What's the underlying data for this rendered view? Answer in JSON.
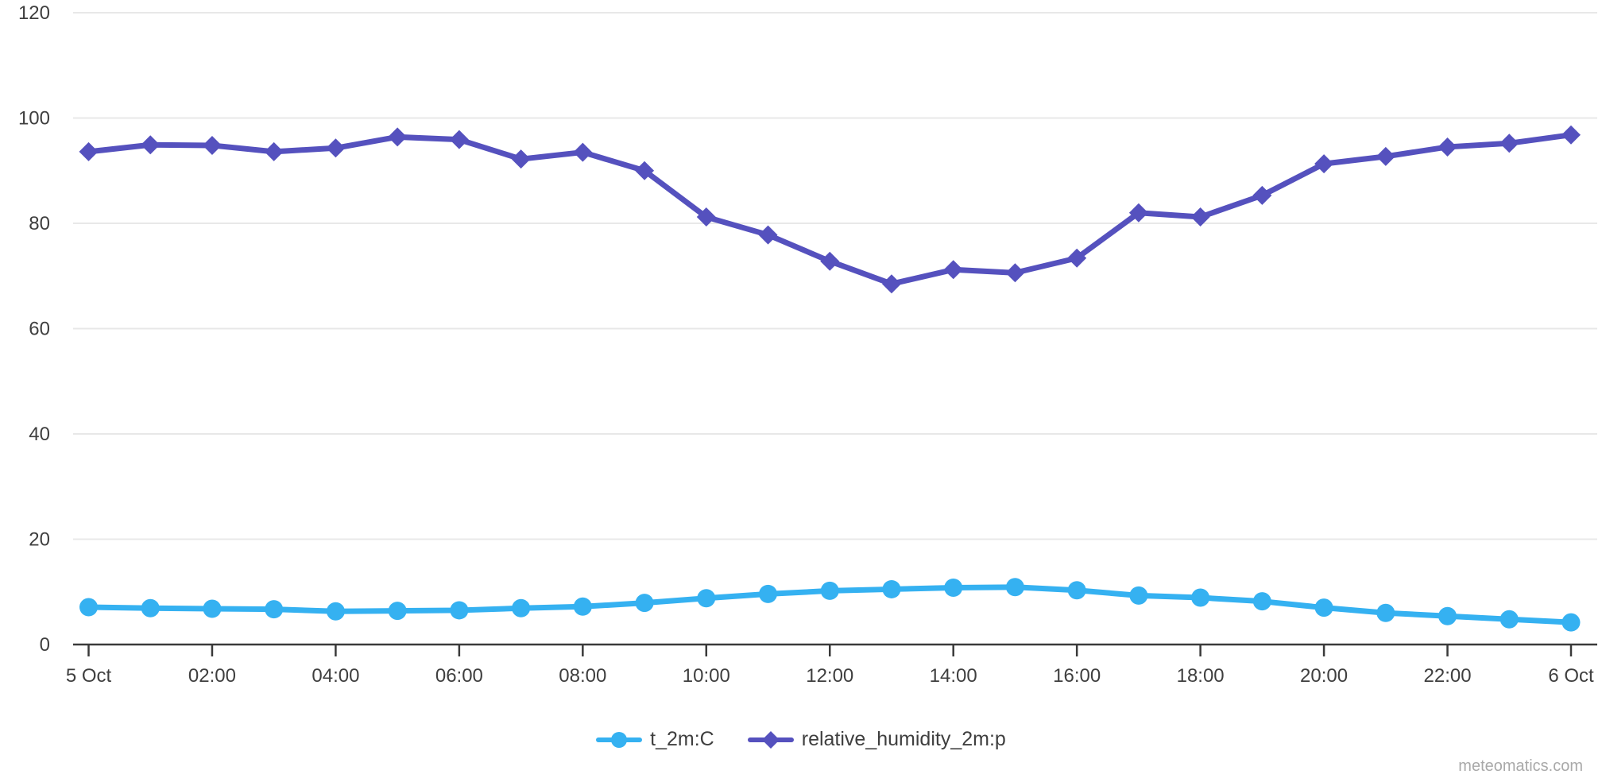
{
  "chart_data": {
    "type": "line",
    "x_axis": {
      "start": "5 Oct 00:00",
      "end": "6 Oct 00:00",
      "step_hours": 1,
      "tick_every_hours": 2,
      "tick_labels": [
        "5 Oct",
        "02:00",
        "04:00",
        "06:00",
        "08:00",
        "10:00",
        "12:00",
        "14:00",
        "16:00",
        "18:00",
        "20:00",
        "22:00",
        "6 Oct"
      ]
    },
    "y_axis": {
      "min": 0,
      "max": 120,
      "ticks": [
        0,
        20,
        40,
        60,
        80,
        100,
        120
      ]
    },
    "grid": {
      "horizontal": true,
      "vertical": false
    },
    "legend_position": "bottom-center",
    "series": [
      {
        "name": "t_2m:C",
        "color": "#35b1f1",
        "marker": "circle",
        "values": [
          7.1,
          6.9,
          6.8,
          6.7,
          6.3,
          6.4,
          6.5,
          6.9,
          7.2,
          7.9,
          8.8,
          9.6,
          10.2,
          10.5,
          10.8,
          10.9,
          10.3,
          9.3,
          8.9,
          8.2,
          7.0,
          6.0,
          5.4,
          4.8,
          4.2
        ]
      },
      {
        "name": "relative_humidity_2m:p",
        "color": "#5551be",
        "marker": "diamond",
        "values": [
          93.6,
          94.9,
          94.8,
          93.6,
          94.3,
          96.4,
          95.9,
          92.2,
          93.5,
          90.0,
          81.2,
          77.8,
          72.8,
          68.5,
          71.2,
          70.6,
          73.4,
          82.0,
          81.2,
          85.3,
          91.3,
          92.7,
          94.5,
          95.2,
          96.8
        ]
      }
    ]
  },
  "colors": {
    "background": "#ffffff",
    "grid": "#e8e8e8",
    "axis": "#3a3a3a",
    "tick_text": "#3f3f3f",
    "watermark": "#a9a9a9"
  },
  "watermark": "meteomatics.com"
}
